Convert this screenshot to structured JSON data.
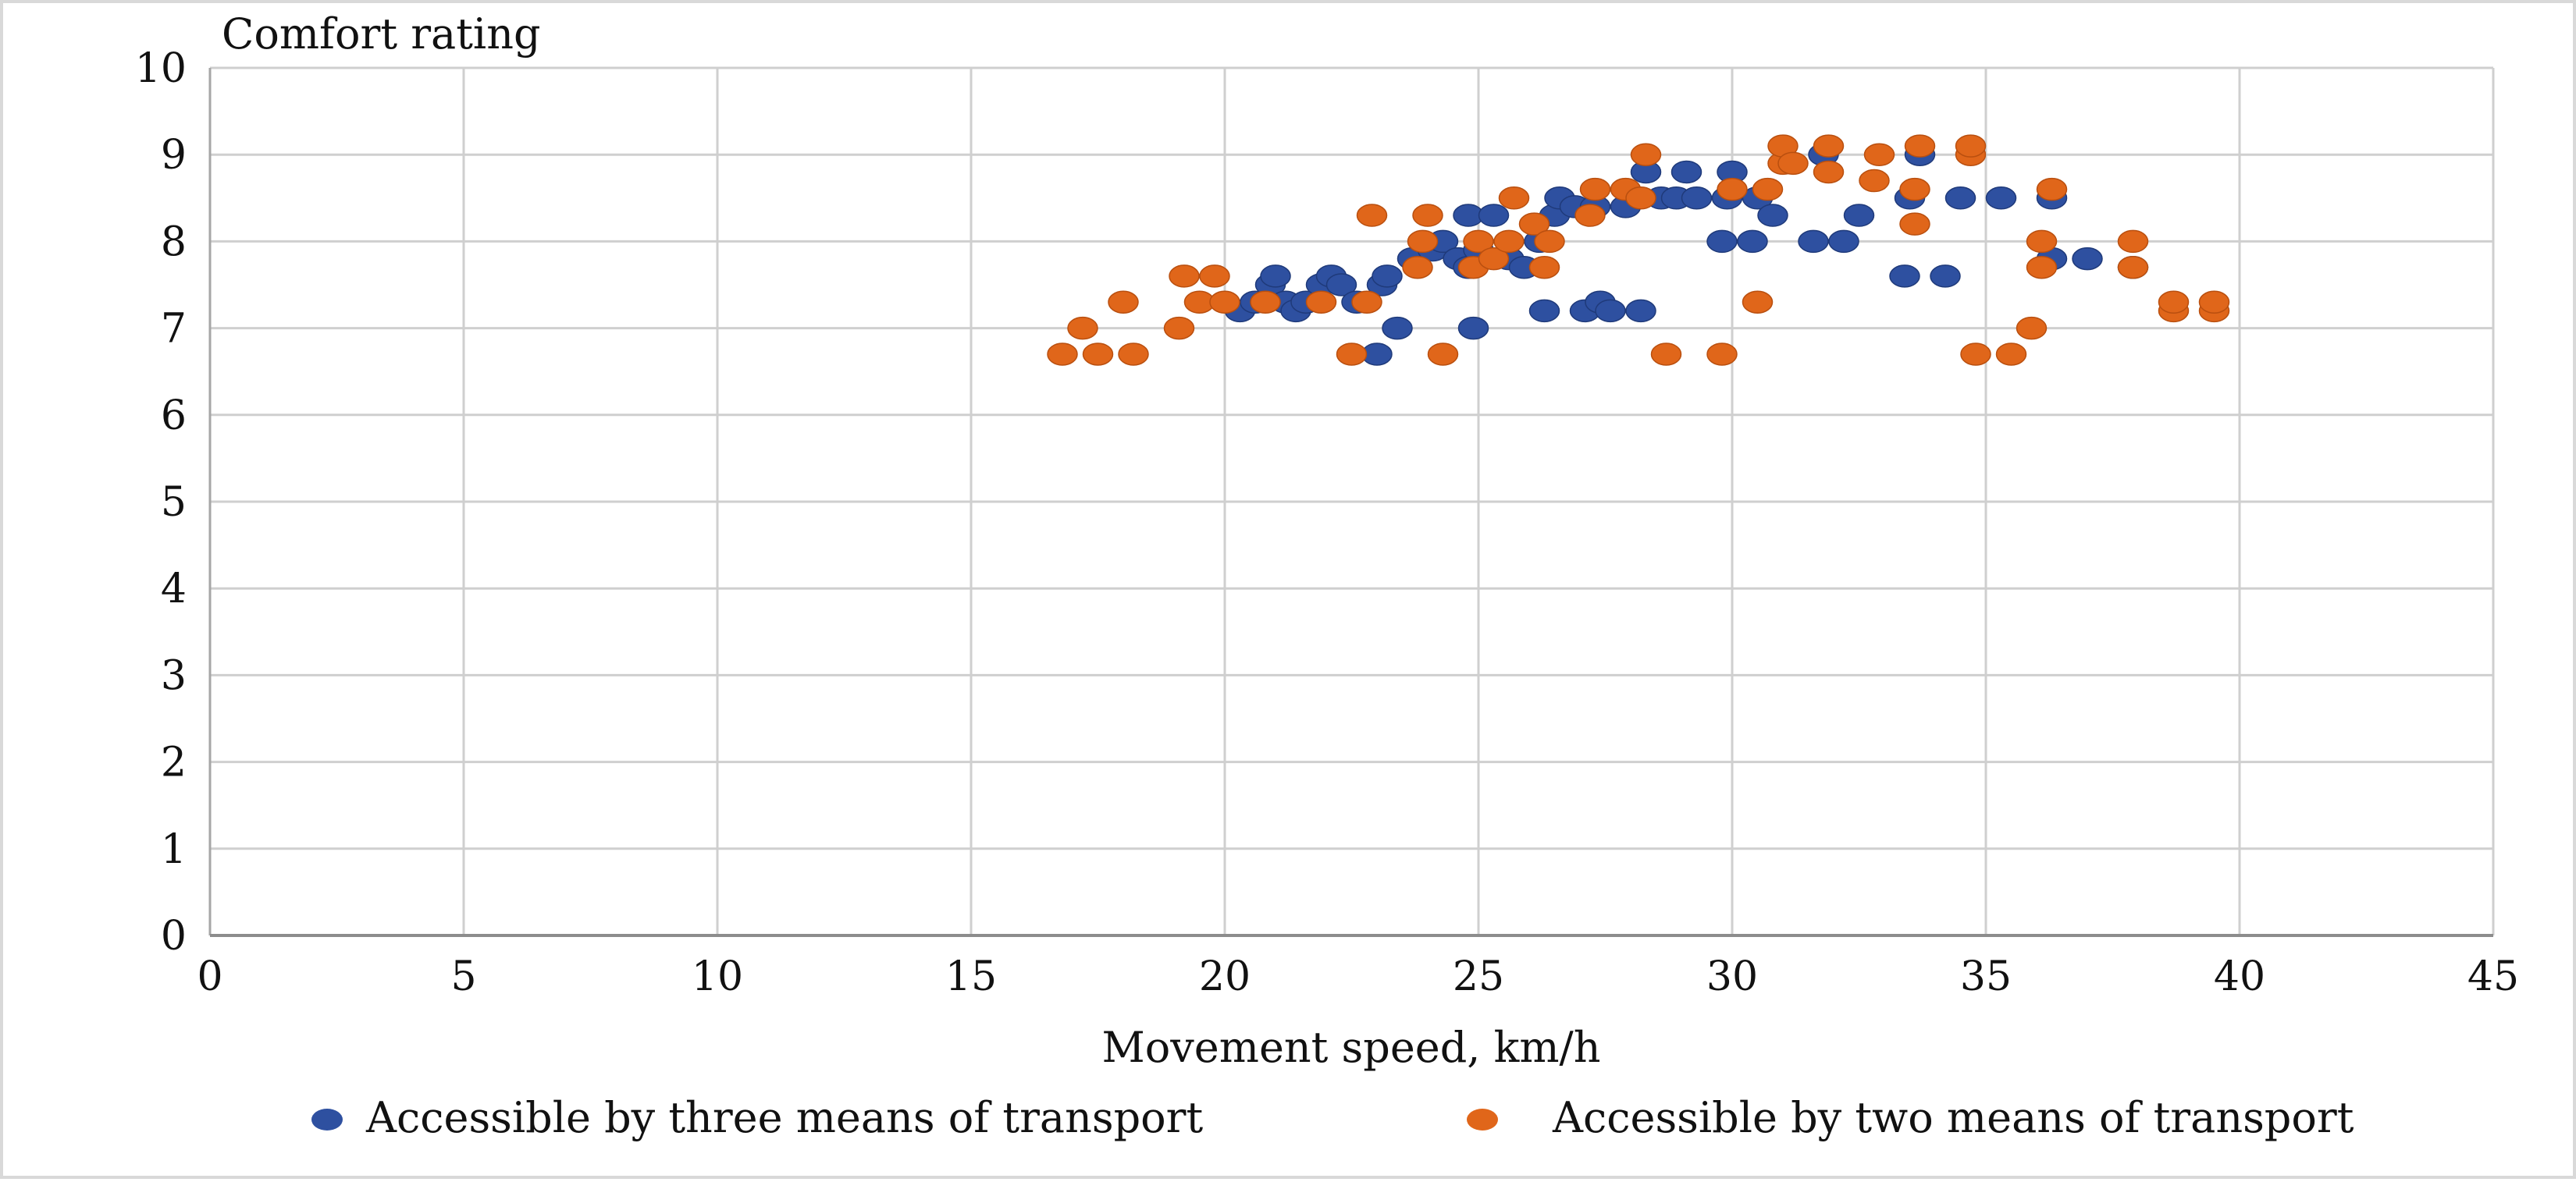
{
  "chart_data": {
    "type": "scatter",
    "title": "",
    "xlabel": "Movement speed, km/h",
    "ylabel": "Comfort rating",
    "xlim": [
      0,
      45
    ],
    "ylim": [
      0,
      10
    ],
    "x_ticks": [
      "0",
      "5",
      "10",
      "15",
      "20",
      "25",
      "30",
      "35",
      "40",
      "45"
    ],
    "y_ticks": [
      "0",
      "1",
      "2",
      "3",
      "4",
      "5",
      "6",
      "7",
      "8",
      "9",
      "10"
    ],
    "grid": true,
    "legend_position": "bottom",
    "series": [
      {
        "name": "Accessible by three means of transport",
        "color": "#2e50a0",
        "points": [
          [
            20.3,
            7.2
          ],
          [
            20.6,
            7.3
          ],
          [
            20.9,
            7.5
          ],
          [
            21.0,
            7.6
          ],
          [
            21.2,
            7.3
          ],
          [
            21.4,
            7.2
          ],
          [
            21.6,
            7.3
          ],
          [
            21.9,
            7.5
          ],
          [
            22.1,
            7.6
          ],
          [
            22.3,
            7.5
          ],
          [
            22.6,
            7.3
          ],
          [
            23.0,
            6.7
          ],
          [
            23.1,
            7.5
          ],
          [
            23.2,
            7.6
          ],
          [
            23.4,
            7.0
          ],
          [
            23.7,
            7.8
          ],
          [
            24.1,
            7.9
          ],
          [
            24.3,
            8.0
          ],
          [
            24.6,
            7.8
          ],
          [
            24.8,
            7.7
          ],
          [
            24.8,
            8.3
          ],
          [
            24.9,
            7.0
          ],
          [
            25.0,
            7.9
          ],
          [
            25.3,
            8.3
          ],
          [
            25.6,
            7.8
          ],
          [
            25.9,
            7.7
          ],
          [
            26.2,
            8.0
          ],
          [
            26.3,
            7.2
          ],
          [
            26.5,
            8.3
          ],
          [
            26.6,
            8.5
          ],
          [
            26.9,
            8.4
          ],
          [
            27.1,
            7.2
          ],
          [
            27.3,
            8.4
          ],
          [
            27.4,
            7.3
          ],
          [
            27.6,
            7.2
          ],
          [
            27.9,
            8.4
          ],
          [
            28.2,
            7.2
          ],
          [
            28.3,
            8.8
          ],
          [
            28.6,
            8.5
          ],
          [
            28.9,
            8.5
          ],
          [
            29.1,
            8.8
          ],
          [
            29.3,
            8.5
          ],
          [
            29.8,
            8.0
          ],
          [
            29.9,
            8.5
          ],
          [
            30.0,
            8.8
          ],
          [
            30.4,
            8.0
          ],
          [
            30.5,
            8.5
          ],
          [
            30.8,
            8.3
          ],
          [
            31.6,
            8.0
          ],
          [
            31.8,
            9.0
          ],
          [
            32.2,
            8.0
          ],
          [
            32.5,
            8.3
          ],
          [
            33.4,
            7.6
          ],
          [
            33.5,
            8.5
          ],
          [
            33.7,
            9.0
          ],
          [
            34.2,
            7.6
          ],
          [
            34.5,
            8.5
          ],
          [
            35.3,
            8.5
          ],
          [
            36.3,
            8.5
          ],
          [
            36.3,
            7.8
          ],
          [
            37.0,
            7.8
          ],
          [
            37.9,
            7.7
          ]
        ]
      },
      {
        "name": "Accessible by two means of transport",
        "color": "#e0661a",
        "points": [
          [
            16.8,
            6.7
          ],
          [
            17.2,
            7.0
          ],
          [
            17.5,
            6.7
          ],
          [
            18.0,
            7.3
          ],
          [
            18.2,
            6.7
          ],
          [
            19.1,
            7.0
          ],
          [
            19.2,
            7.6
          ],
          [
            19.5,
            7.3
          ],
          [
            19.8,
            7.6
          ],
          [
            20.0,
            7.3
          ],
          [
            20.8,
            7.3
          ],
          [
            21.9,
            7.3
          ],
          [
            22.5,
            6.7
          ],
          [
            22.8,
            7.3
          ],
          [
            22.9,
            8.3
          ],
          [
            23.8,
            7.7
          ],
          [
            23.9,
            8.0
          ],
          [
            24.0,
            8.3
          ],
          [
            24.3,
            6.7
          ],
          [
            24.9,
            7.7
          ],
          [
            25.0,
            8.0
          ],
          [
            25.3,
            7.8
          ],
          [
            25.6,
            8.0
          ],
          [
            25.7,
            8.5
          ],
          [
            26.1,
            8.2
          ],
          [
            26.3,
            7.7
          ],
          [
            26.4,
            8.0
          ],
          [
            27.2,
            8.3
          ],
          [
            27.3,
            8.6
          ],
          [
            27.9,
            8.6
          ],
          [
            28.2,
            8.5
          ],
          [
            28.3,
            9.0
          ],
          [
            28.7,
            6.7
          ],
          [
            29.8,
            6.7
          ],
          [
            30.0,
            8.6
          ],
          [
            30.5,
            7.3
          ],
          [
            30.7,
            8.6
          ],
          [
            31.0,
            8.9
          ],
          [
            31.0,
            9.1
          ],
          [
            31.2,
            8.9
          ],
          [
            31.9,
            8.8
          ],
          [
            31.9,
            9.1
          ],
          [
            32.8,
            8.7
          ],
          [
            32.9,
            9.0
          ],
          [
            33.6,
            8.2
          ],
          [
            33.6,
            8.6
          ],
          [
            33.7,
            9.1
          ],
          [
            34.7,
            9.0
          ],
          [
            34.7,
            9.1
          ],
          [
            34.8,
            6.7
          ],
          [
            35.5,
            6.7
          ],
          [
            35.9,
            7.0
          ],
          [
            36.1,
            7.7
          ],
          [
            36.1,
            8.0
          ],
          [
            36.3,
            8.6
          ],
          [
            37.9,
            7.7
          ],
          [
            37.9,
            8.0
          ],
          [
            38.7,
            7.2
          ],
          [
            38.7,
            7.3
          ],
          [
            39.5,
            7.2
          ],
          [
            39.5,
            7.3
          ]
        ]
      }
    ]
  }
}
